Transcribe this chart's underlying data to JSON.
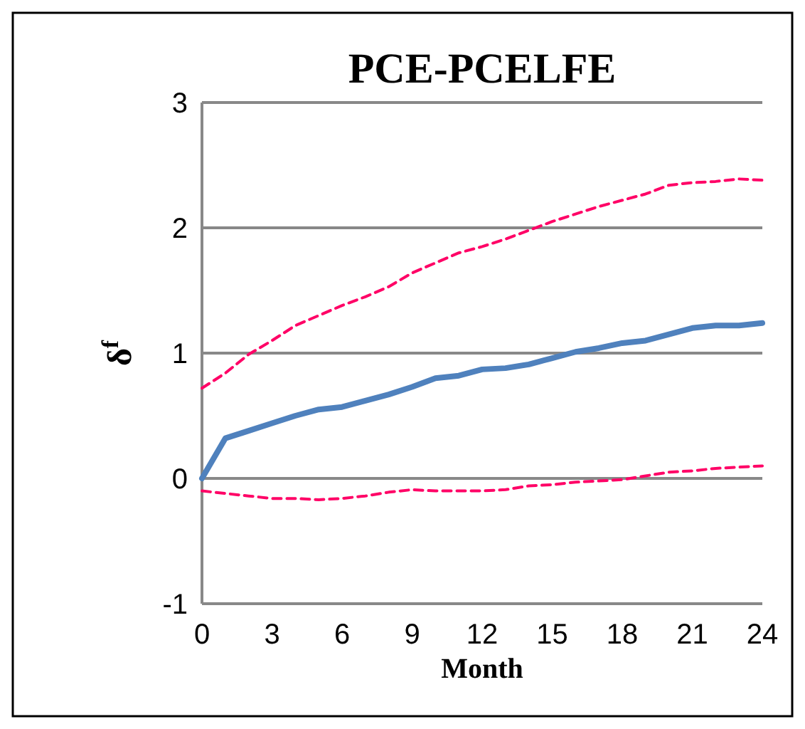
{
  "chart_data": {
    "type": "line",
    "title": "PCE-PCELFE",
    "xlabel": "Month",
    "ylabel": "δ$^{f}$",
    "x": [
      0,
      1,
      2,
      3,
      4,
      5,
      6,
      7,
      8,
      9,
      10,
      11,
      12,
      13,
      14,
      15,
      16,
      17,
      18,
      19,
      20,
      21,
      22,
      23,
      24
    ],
    "series": [
      {
        "color": "#4f81bd",
        "line_style": "solid",
        "values": [
          0,
          0.32,
          0.38,
          0.44,
          0.5,
          0.55,
          0.57,
          0.62,
          0.67,
          0.73,
          0.8,
          0.82,
          0.87,
          0.88,
          0.91,
          0.96,
          1.01,
          1.04,
          1.08,
          1.1,
          1.15,
          1.2,
          1.22,
          1.22,
          1.24
        ]
      },
      {
        "color": "#ff0066",
        "line_style": "dashed",
        "values": [
          0.72,
          0.84,
          0.99,
          1.1,
          1.22,
          1.3,
          1.38,
          1.45,
          1.53,
          1.64,
          1.72,
          1.8,
          1.85,
          1.91,
          1.98,
          2.05,
          2.11,
          2.17,
          2.22,
          2.27,
          2.34,
          2.36,
          2.37,
          2.39,
          2.38
        ]
      },
      {
        "color": "#ff0066",
        "line_style": "dashed",
        "values": [
          -0.1,
          -0.12,
          -0.14,
          -0.16,
          -0.16,
          -0.17,
          -0.16,
          -0.14,
          -0.11,
          -0.09,
          -0.1,
          -0.1,
          -0.1,
          -0.09,
          -0.06,
          -0.05,
          -0.03,
          -0.02,
          -0.01,
          0.02,
          0.05,
          0.06,
          0.08,
          0.09,
          0.1
        ]
      }
    ],
    "xlim": [
      0,
      24
    ],
    "xticks": [
      0,
      3,
      6,
      9,
      12,
      15,
      18,
      21,
      24
    ],
    "ylim": [
      -1,
      3
    ],
    "yticks": [
      -1,
      0,
      1,
      2,
      3
    ],
    "grid": "y",
    "marker": "none"
  }
}
